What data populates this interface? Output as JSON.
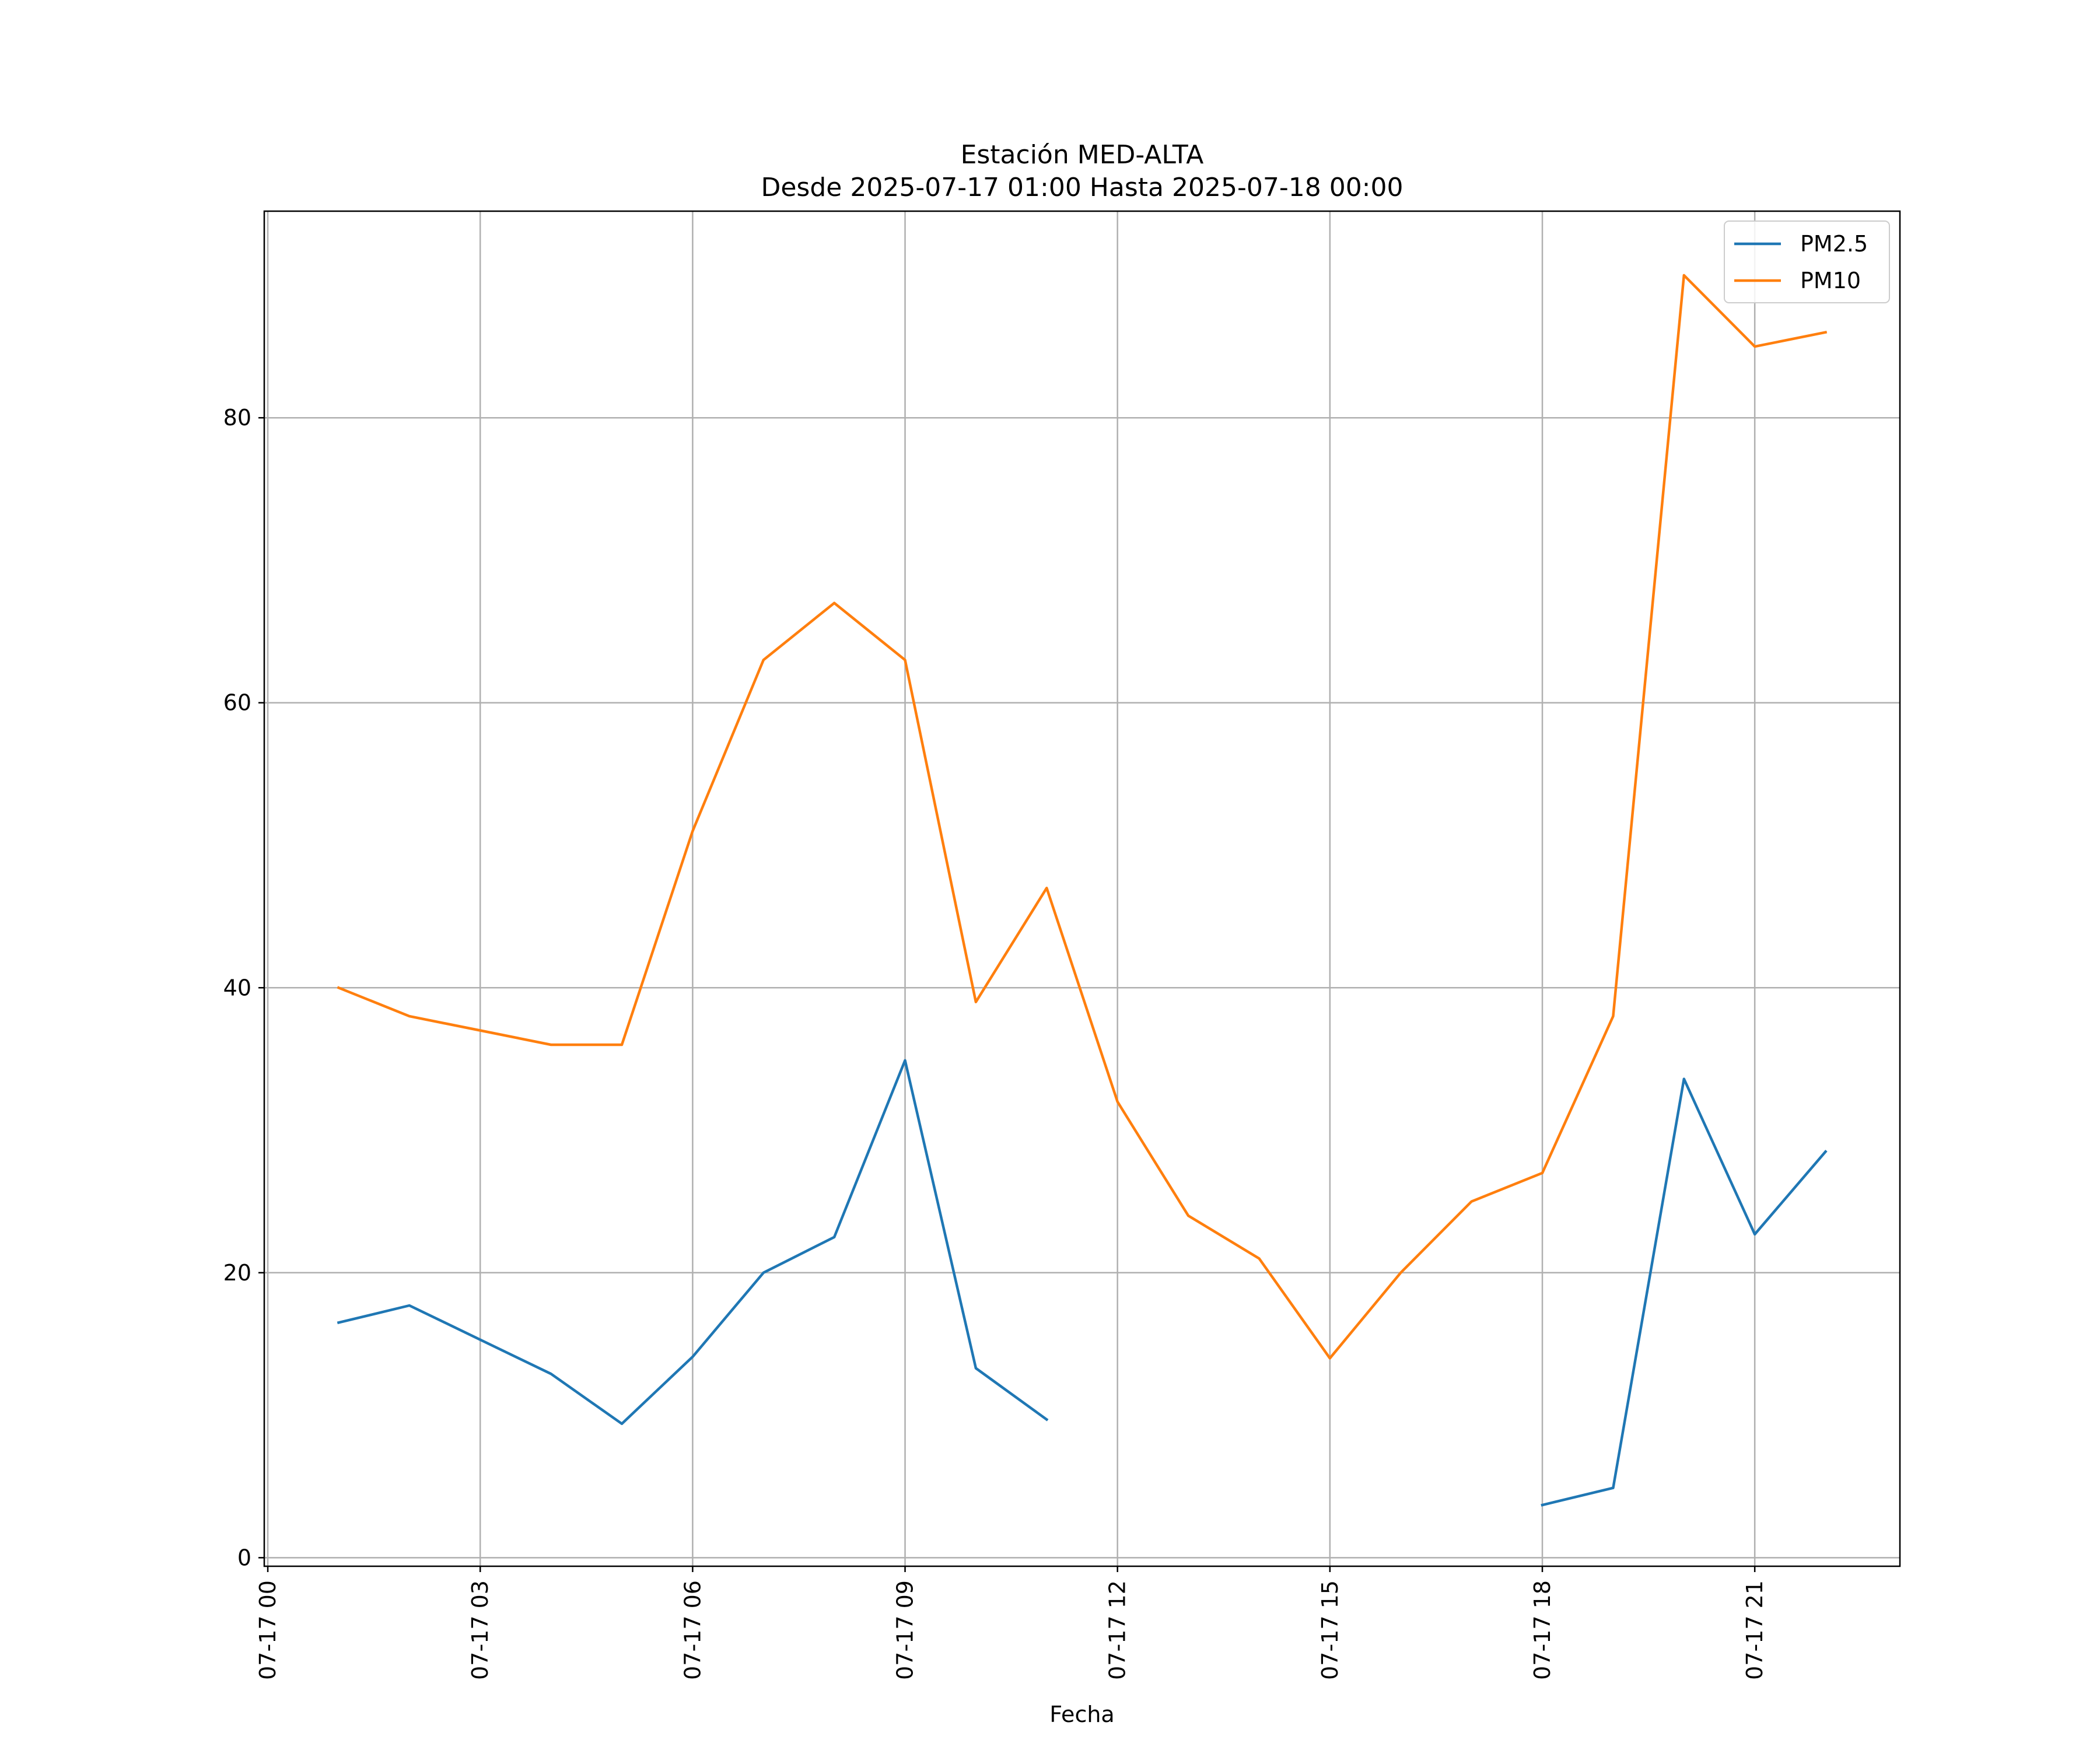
{
  "chart_data": {
    "type": "line",
    "title": "Estación MED-ALTA",
    "subtitle": "Desde 2025-07-17 01:00 Hasta 2025-07-18 00:00",
    "xlabel": "Fecha",
    "ylabel": "",
    "x": [
      "2025-07-17 01:00",
      "2025-07-17 02:00",
      "2025-07-17 03:00",
      "2025-07-17 04:00",
      "2025-07-17 05:00",
      "2025-07-17 06:00",
      "2025-07-17 07:00",
      "2025-07-17 08:00",
      "2025-07-17 09:00",
      "2025-07-17 10:00",
      "2025-07-17 11:00",
      "2025-07-17 12:00",
      "2025-07-17 13:00",
      "2025-07-17 14:00",
      "2025-07-17 15:00",
      "2025-07-17 16:00",
      "2025-07-17 17:00",
      "2025-07-17 18:00",
      "2025-07-17 19:00",
      "2025-07-17 20:00",
      "2025-07-17 21:00",
      "2025-07-17 22:00"
    ],
    "xlim": [
      "2025-07-16 23:57",
      "2025-07-17 23:03"
    ],
    "x_ticks": [
      "07-17 00",
      "07-17 03",
      "07-17 06",
      "07-17 09",
      "07-17 12",
      "07-17 15",
      "07-17 18",
      "07-17 21"
    ],
    "ylim": [
      -0.6,
      94.5
    ],
    "y_ticks": [
      0,
      20,
      40,
      60,
      80
    ],
    "grid": true,
    "legend_position": "top-right",
    "series": [
      {
        "name": "PM2.5",
        "color": "#1f77b4",
        "values": [
          16.5,
          17.7,
          15.3,
          12.9,
          9.4,
          14.1,
          20.0,
          22.5,
          34.9,
          13.3,
          9.7,
          null,
          null,
          null,
          null,
          null,
          null,
          3.7,
          4.9,
          33.6,
          22.7,
          28.5
        ]
      },
      {
        "name": "PM10",
        "color": "#ff7f0e",
        "values": [
          40,
          38,
          37,
          36,
          36,
          51,
          63,
          67,
          63,
          39,
          47,
          32,
          24,
          21,
          14,
          20,
          25,
          27,
          38,
          90,
          85,
          86
        ]
      }
    ]
  }
}
